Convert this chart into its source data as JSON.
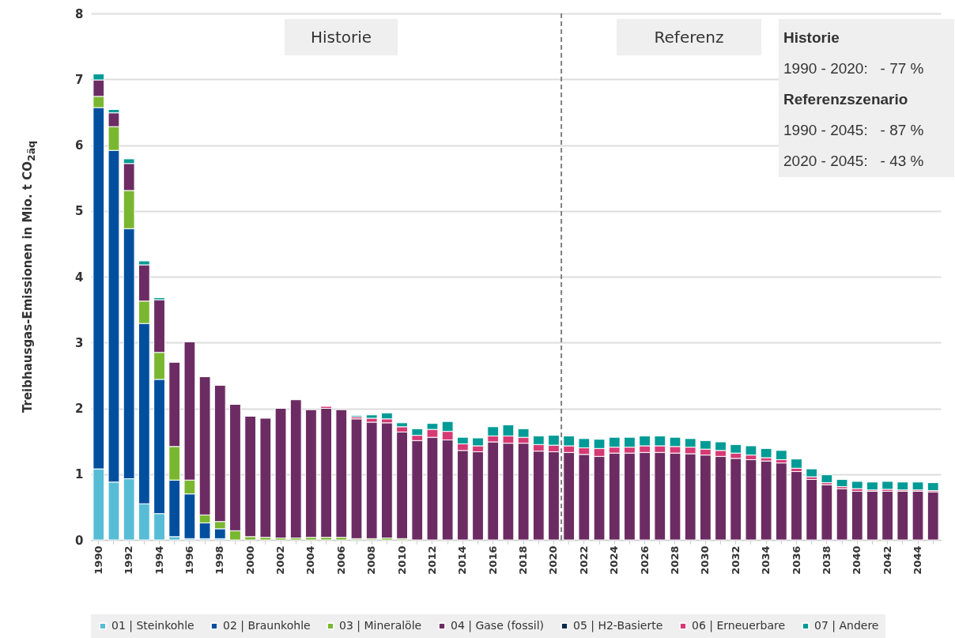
{
  "chart_data": {
    "type": "bar",
    "stacked": true,
    "ylabel": "Treibhausgas-Emissionen in Mio. t CO$_{2äq}$",
    "categories": [
      "1990",
      null,
      "1992",
      null,
      "1994",
      null,
      "1996",
      null,
      "1998",
      null,
      "2000",
      null,
      "2002",
      null,
      "2004",
      null,
      "2006",
      null,
      "2008",
      null,
      "2010",
      null,
      "2012",
      null,
      "2014",
      null,
      "2016",
      null,
      "2018",
      null,
      "2020",
      null,
      "2022",
      null,
      "2024",
      null,
      "2026",
      null,
      "2028",
      null,
      "2030",
      null,
      "2032",
      null,
      "2034",
      null,
      "2036",
      null,
      "2038",
      null,
      "2040",
      null,
      "2042",
      null,
      "2044",
      null
    ],
    "series": [
      {
        "name": "01 | Steinkohle",
        "color": "#57bdd6",
        "values": [
          1.08,
          0.88,
          0.93,
          0.55,
          0.4,
          0.05,
          0.02,
          0.02,
          0.02,
          0,
          0,
          0,
          0,
          0,
          0,
          0,
          0,
          0,
          0,
          0,
          0,
          0,
          0,
          0,
          0,
          0,
          0,
          0,
          0,
          0,
          0,
          0,
          0,
          0,
          0,
          0,
          0,
          0,
          0,
          0,
          0,
          0,
          0,
          0,
          0,
          0,
          0,
          0,
          0,
          0,
          0,
          0,
          0,
          0,
          0,
          0
        ]
      },
      {
        "name": "02 | Braunkohle",
        "color": "#004f9f",
        "values": [
          5.49,
          5.04,
          3.8,
          2.74,
          2.04,
          0.86,
          0.68,
          0.24,
          0.15,
          0,
          0,
          0,
          0,
          0,
          0,
          0,
          0,
          0,
          0,
          0,
          0,
          0,
          0,
          0,
          0,
          0,
          0,
          0,
          0,
          0,
          0,
          0,
          0,
          0,
          0,
          0,
          0,
          0,
          0,
          0,
          0,
          0,
          0,
          0,
          0,
          0,
          0,
          0,
          0,
          0,
          0,
          0,
          0,
          0,
          0,
          0
        ]
      },
      {
        "name": "03 | Mineralöle",
        "color": "#7ab730",
        "values": [
          0.17,
          0.36,
          0.58,
          0.34,
          0.41,
          0.51,
          0.21,
          0.12,
          0.11,
          0.14,
          0.05,
          0.04,
          0.03,
          0.03,
          0.04,
          0.04,
          0.04,
          0.02,
          0.02,
          0.03,
          0.02,
          0,
          0,
          0,
          0,
          0,
          0,
          0,
          0,
          0,
          0,
          0,
          0,
          0,
          0,
          0,
          0,
          0,
          0,
          0,
          0,
          0,
          0,
          0,
          0,
          0,
          0,
          0,
          0,
          0,
          0,
          0,
          0,
          0,
          0,
          0
        ]
      },
      {
        "name": "04 | Gase (fossil)",
        "color": "#6c2c63",
        "values": [
          0.25,
          0.21,
          0.41,
          0.55,
          0.8,
          1.28,
          2.1,
          2.1,
          2.07,
          1.92,
          1.83,
          1.81,
          1.97,
          2.1,
          1.94,
          1.96,
          1.94,
          1.82,
          1.77,
          1.75,
          1.62,
          1.51,
          1.56,
          1.52,
          1.36,
          1.34,
          1.49,
          1.47,
          1.47,
          1.35,
          1.34,
          1.33,
          1.3,
          1.27,
          1.32,
          1.32,
          1.33,
          1.33,
          1.32,
          1.31,
          1.29,
          1.27,
          1.24,
          1.22,
          1.2,
          1.17,
          1.04,
          0.92,
          0.84,
          0.78,
          0.74,
          0.74,
          0.74,
          0.74,
          0.74,
          0.73
        ]
      },
      {
        "name": "05 | H2-Basierte",
        "color": "#0f2a4a",
        "values": [
          0,
          0,
          0,
          0,
          0,
          0,
          0,
          0,
          0,
          0,
          0,
          0,
          0,
          0,
          0,
          0,
          0,
          0,
          0,
          0,
          0,
          0,
          0,
          0,
          0,
          0,
          0,
          0,
          0,
          0,
          0,
          0,
          0,
          0,
          0,
          0,
          0,
          0,
          0,
          0,
          0,
          0,
          0,
          0,
          0,
          0,
          0,
          0,
          0,
          0,
          0,
          0,
          0,
          0,
          0,
          0
        ]
      },
      {
        "name": "06 | Erneuerbare",
        "color": "#d63a74",
        "values": [
          0,
          0,
          0,
          0,
          0,
          0,
          0,
          0,
          0,
          0,
          0,
          0,
          0,
          0,
          0,
          0.03,
          0,
          0.03,
          0.06,
          0.06,
          0.08,
          0.08,
          0.12,
          0.13,
          0.1,
          0.09,
          0.09,
          0.11,
          0.09,
          0.1,
          0.1,
          0.1,
          0.1,
          0.12,
          0.09,
          0.09,
          0.1,
          0.1,
          0.1,
          0.1,
          0.09,
          0.09,
          0.08,
          0.07,
          0.05,
          0.05,
          0.05,
          0.04,
          0.03,
          0.03,
          0.04,
          0.02,
          0.03,
          0.02,
          0.02,
          0.02
        ]
      },
      {
        "name": "07 | Andere",
        "color": "#009b96",
        "values": [
          0.09,
          0.05,
          0.07,
          0.06,
          0.03,
          0,
          0,
          0,
          0,
          0,
          0,
          0,
          0,
          0,
          0,
          0,
          0,
          0.02,
          0.05,
          0.09,
          0.06,
          0.1,
          0.09,
          0.15,
          0.1,
          0.12,
          0.14,
          0.17,
          0.13,
          0.13,
          0.15,
          0.15,
          0.14,
          0.14,
          0.15,
          0.15,
          0.15,
          0.15,
          0.14,
          0.13,
          0.13,
          0.13,
          0.13,
          0.14,
          0.14,
          0.14,
          0.14,
          0.12,
          0.12,
          0.11,
          0.11,
          0.12,
          0.12,
          0.12,
          0.12,
          0.12
        ]
      }
    ],
    "ylim": [
      0,
      8
    ],
    "yticks": [
      0,
      1,
      2,
      3,
      4,
      5,
      6,
      7,
      8
    ],
    "grid": "y",
    "legend": "bottom",
    "ref_lines": [
      {
        "axis": "x",
        "value": "2020",
        "color": "#808080",
        "line_style": "dashed"
      }
    ],
    "annotations": [
      "Historie",
      "Referenz",
      "Historie",
      "1990 - 2020:   - 77 %",
      "Referenzszenario",
      "1990 - 2045:   - 87 %",
      "2020 - 2045:   - 43 %"
    ]
  }
}
